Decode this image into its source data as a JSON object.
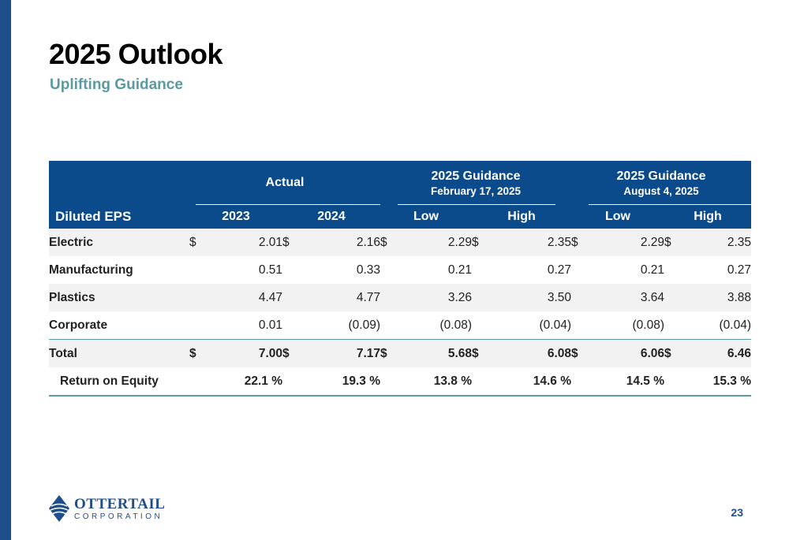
{
  "header": {
    "title": "2025 Outlook",
    "subtitle": "Uplifting Guidance"
  },
  "table": {
    "groups": {
      "actual": "Actual",
      "guidance_feb": {
        "title": "2025 Guidance",
        "date": "February 17, 2025"
      },
      "guidance_aug": {
        "title": "2025 Guidance",
        "date": "August 4, 2025"
      }
    },
    "row_header": "Diluted EPS",
    "columns": [
      "2023",
      "2024",
      "Low",
      "High",
      "Low",
      "High"
    ],
    "rows": [
      {
        "label": "Electric",
        "dollar": "$",
        "values": [
          "2.01",
          "2.16",
          "2.29",
          "2.35",
          "2.29",
          "2.35"
        ]
      },
      {
        "label": "Manufacturing",
        "values": [
          "0.51",
          "0.33",
          "0.21",
          "0.27",
          "0.21",
          "0.27"
        ]
      },
      {
        "label": "Plastics",
        "values": [
          "4.47",
          "4.77",
          "3.26",
          "3.50",
          "3.64",
          "3.88"
        ]
      },
      {
        "label": "Corporate",
        "values": [
          "0.01",
          "(0.09)",
          "(0.08)",
          "(0.04)",
          "(0.08)",
          "(0.04)"
        ]
      }
    ],
    "total": {
      "label": "Total",
      "dollar": "$",
      "values": [
        "7.00",
        "7.17",
        "5.68",
        "6.08",
        "6.06",
        "6.46"
      ]
    },
    "roe": {
      "label": "Return on Equity",
      "values": [
        "22.1 %",
        "19.3 %",
        "13.8 %",
        "14.6 %",
        "14.5 %",
        "15.3 %"
      ]
    }
  },
  "footer": {
    "logo_name": "OTTERTAIL",
    "logo_corp": "CORPORATION",
    "page_number": "23"
  },
  "colors": {
    "navy": "#0b4a8b",
    "teal": "#5a9aa0",
    "shade": "#f2f2f2"
  }
}
